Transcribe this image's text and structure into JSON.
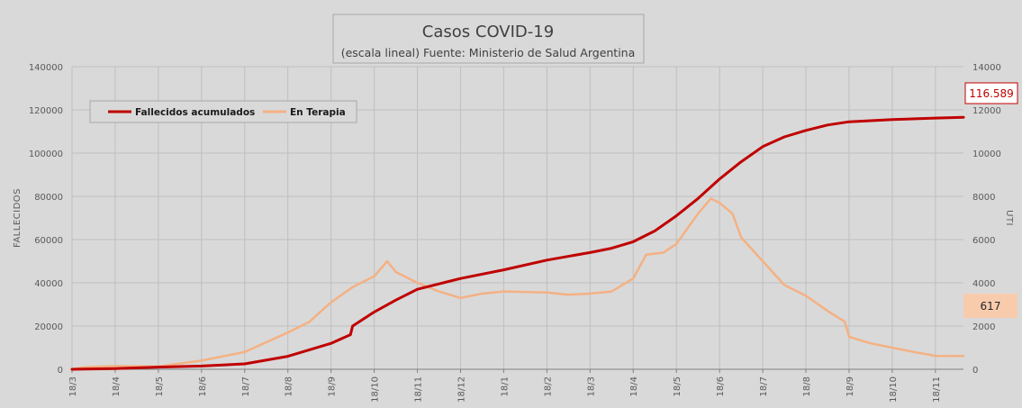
{
  "chart_data": {
    "type": "line",
    "title": "Casos COVID-19",
    "subtitle": "(escala lineal) Fuente: Ministerio de Salud Argentina",
    "y_left_label": "FALLECIDOS",
    "y_right_label": "UTI",
    "y_left_ticks": [
      "0",
      "20000",
      "40000",
      "60000",
      "80000",
      "100000",
      "120000",
      "140000"
    ],
    "y_right_ticks": [
      "0",
      "2000",
      "4000",
      "6000",
      "8000",
      "10000",
      "12000",
      "14000"
    ],
    "y_left_lim": [
      0,
      140000
    ],
    "y_right_lim": [
      0,
      14000
    ],
    "x_ticks": [
      "18/3",
      "18/4",
      "18/5",
      "18/6",
      "18/7",
      "18/8",
      "18/9",
      "18/10",
      "18/11",
      "18/12",
      "18/1",
      "18/2",
      "18/3",
      "18/4",
      "18/5",
      "18/6",
      "18/7",
      "18/8",
      "18/9",
      "18/10",
      "18/11"
    ],
    "x_range_months": [
      0,
      20.65
    ],
    "grid": true,
    "legend_position": "top-left",
    "series": [
      {
        "name": "Fallecidos acumulados",
        "axis": "left",
        "color": "#c00000",
        "points": [
          [
            0,
            0
          ],
          [
            1,
            300
          ],
          [
            2,
            1000
          ],
          [
            3,
            1500
          ],
          [
            4,
            2500
          ],
          [
            5,
            6000
          ],
          [
            6,
            12000
          ],
          [
            6.45,
            16000
          ],
          [
            6.5,
            20000
          ],
          [
            7,
            26500
          ],
          [
            7.5,
            32000
          ],
          [
            8,
            37000
          ],
          [
            9,
            42000
          ],
          [
            10,
            46000
          ],
          [
            11,
            50500
          ],
          [
            12,
            54000
          ],
          [
            12.5,
            56000
          ],
          [
            13,
            59000
          ],
          [
            13.5,
            64000
          ],
          [
            14,
            71000
          ],
          [
            14.5,
            79000
          ],
          [
            15,
            88000
          ],
          [
            15.5,
            96000
          ],
          [
            16,
            103000
          ],
          [
            16.5,
            107500
          ],
          [
            17,
            110500
          ],
          [
            17.5,
            113000
          ],
          [
            18,
            114500
          ],
          [
            19,
            115500
          ],
          [
            20,
            116200
          ],
          [
            20.65,
            116589
          ]
        ]
      },
      {
        "name": "En Terapia",
        "axis": "right",
        "color": "#f4b183",
        "points": [
          [
            0,
            0
          ],
          [
            0.3,
            100
          ],
          [
            1,
            150
          ],
          [
            2,
            130
          ],
          [
            3,
            400
          ],
          [
            4,
            800
          ],
          [
            5,
            1700
          ],
          [
            5.5,
            2200
          ],
          [
            6,
            3100
          ],
          [
            6.5,
            3800
          ],
          [
            7,
            4300
          ],
          [
            7.3,
            5000
          ],
          [
            7.5,
            4500
          ],
          [
            8,
            4000
          ],
          [
            8.5,
            3600
          ],
          [
            9,
            3300
          ],
          [
            9.5,
            3500
          ],
          [
            10,
            3600
          ],
          [
            11,
            3550
          ],
          [
            11.5,
            3450
          ],
          [
            12,
            3500
          ],
          [
            12.5,
            3600
          ],
          [
            13,
            4200
          ],
          [
            13.3,
            5300
          ],
          [
            13.7,
            5400
          ],
          [
            14,
            5800
          ],
          [
            14.5,
            7200
          ],
          [
            14.8,
            7900
          ],
          [
            15,
            7700
          ],
          [
            15.3,
            7200
          ],
          [
            15.5,
            6100
          ],
          [
            16,
            5000
          ],
          [
            16.5,
            3900
          ],
          [
            17,
            3400
          ],
          [
            17.5,
            2700
          ],
          [
            17.9,
            2200
          ],
          [
            18,
            1500
          ],
          [
            18.5,
            1200
          ],
          [
            19,
            1000
          ],
          [
            19.5,
            800
          ],
          [
            20,
            620
          ],
          [
            20.65,
            617
          ]
        ]
      }
    ],
    "callouts": [
      {
        "series": "Fallecidos acumulados",
        "text": "116.589"
      },
      {
        "series": "En Terapia",
        "text": "617"
      }
    ]
  }
}
